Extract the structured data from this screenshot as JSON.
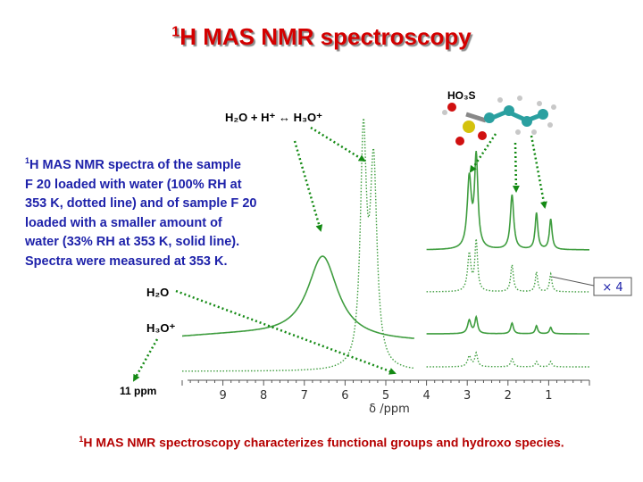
{
  "title": {
    "sup": "1",
    "text": "H MAS NMR spectroscopy"
  },
  "description": {
    "sup": "1",
    "text": "H MAS NMR spectra of the sample\nF 20 loaded with water (100% RH at\n353 K, dotted line) and of sample F 20\nloaded with a smaller amount of\nwater (33% RH at 353 K, solid line).\nSpectra were measured at 353 K."
  },
  "footer": {
    "sup": "1",
    "text": "H MAS NMR spectroscopy characterizes functional groups and hydroxo species."
  },
  "equation": "H₂O + H⁺ ↔ H₃O⁺",
  "molecule_label": "HO₃S",
  "h2o_label": "H₂O",
  "h3o_label": "H₃O⁺",
  "ppm_label": "11 ppm",
  "scale_box": "× 4",
  "colors": {
    "title": "#d40000",
    "description": "#1e22aa",
    "footer": "#b50000",
    "spectrum": "#3f9d3f",
    "arrow": "#148a14"
  },
  "chart_data": {
    "type": "line",
    "xlabel": "δ /ppm",
    "x_reversed": true,
    "xlim": [
      10,
      0
    ],
    "x_ticks": [
      "9",
      "8",
      "7",
      "6",
      "5",
      "4",
      "3",
      "2",
      "1"
    ],
    "series": [
      {
        "style": "solid",
        "scale": 1,
        "peaks": [
          {
            "ppm": 6.55,
            "height": 1.0
          }
        ]
      },
      {
        "style": "dotted",
        "scale": 1,
        "peaks": [
          {
            "ppm": 5.55,
            "height": 2.75
          },
          {
            "ppm": 5.3,
            "height": 2.4
          }
        ]
      },
      {
        "style": "solid",
        "scale": 4,
        "peaks": [
          {
            "ppm": 2.95,
            "height": 1.15
          },
          {
            "ppm": 2.78,
            "height": 1.5
          },
          {
            "ppm": 1.9,
            "height": 0.9
          },
          {
            "ppm": 1.3,
            "height": 0.6
          },
          {
            "ppm": 0.95,
            "height": 0.5
          }
        ]
      },
      {
        "style": "dotted",
        "scale": 4,
        "peaks": [
          {
            "ppm": 2.95,
            "height": 1.05
          },
          {
            "ppm": 2.78,
            "height": 1.4
          },
          {
            "ppm": 1.9,
            "height": 0.75
          },
          {
            "ppm": 1.3,
            "height": 0.55
          },
          {
            "ppm": 0.95,
            "height": 0.5
          }
        ]
      },
      {
        "style": "solid",
        "scale": 1,
        "peaks": [
          {
            "ppm": 2.95,
            "height": 0.25
          },
          {
            "ppm": 2.78,
            "height": 0.3
          },
          {
            "ppm": 1.9,
            "height": 0.2
          },
          {
            "ppm": 1.3,
            "height": 0.15
          },
          {
            "ppm": 0.95,
            "height": 0.12
          }
        ]
      },
      {
        "style": "dotted",
        "scale": 1,
        "peaks": [
          {
            "ppm": 2.95,
            "height": 0.2
          },
          {
            "ppm": 2.78,
            "height": 0.25
          },
          {
            "ppm": 1.9,
            "height": 0.15
          },
          {
            "ppm": 1.3,
            "height": 0.1
          },
          {
            "ppm": 0.95,
            "height": 0.1
          }
        ]
      }
    ]
  }
}
